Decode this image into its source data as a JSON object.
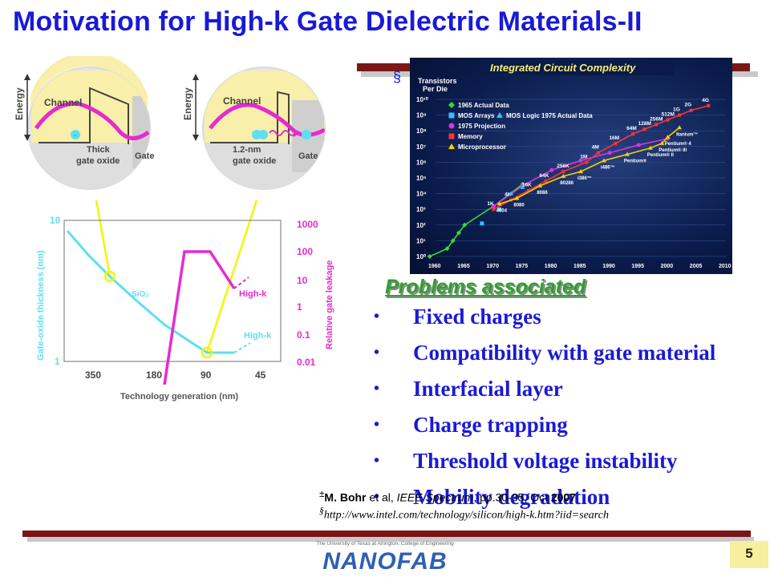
{
  "title": "Motivation for High-k Gate Dielectric Materials-II",
  "section_mark": "§",
  "figure_left": {
    "panel_thick": {
      "energy_label": "Energy",
      "channel_label": "Channel",
      "oxide_label_1": "Thick",
      "oxide_label_2": "gate oxide",
      "gate_label": "Gate"
    },
    "panel_thin": {
      "energy_label": "Energy",
      "channel_label": "Channel",
      "oxide_label_1": "1.2-nm",
      "oxide_label_2": "gate oxide",
      "gate_label": "Gate"
    },
    "graph": {
      "y_left_label": "Gate-oxide thickness (nm)",
      "y_right_label": "Relative gate leakage",
      "x_label": "Technology generation (nm)",
      "y_left_ticks": [
        "10",
        "1"
      ],
      "y_right_ticks": [
        "1000",
        "100",
        "10",
        "1",
        "0.1",
        "0.01"
      ],
      "x_ticks": [
        "350",
        "180",
        "90",
        "45"
      ],
      "sio2_label": "SiO₂",
      "highk_label_leakage": "High-k",
      "highk_label_thickness": "High-k"
    }
  },
  "chart_ic": {
    "title": "Integrated Circuit Complexity",
    "y_label_1": "Transistors",
    "y_label_2": "Per Die",
    "y_ticks": [
      "10¹⁰",
      "10⁹",
      "10⁸",
      "10⁷",
      "10⁶",
      "10⁵",
      "10⁴",
      "10³",
      "10²",
      "10¹",
      "10⁰"
    ],
    "x_ticks": [
      "1960",
      "1965",
      "1970",
      "1975",
      "1980",
      "1985",
      "1990",
      "1995",
      "2000",
      "2005",
      "2010"
    ],
    "legend": [
      {
        "label": "1965 Actual Data",
        "color": "#33dd33",
        "marker": "diamond"
      },
      {
        "label": "MOS Arrays",
        "color": "#33c0ff",
        "marker": "square"
      },
      {
        "label": "MOS Logic 1975 Actual Data",
        "color": "#33c0ff",
        "marker": "triangle"
      },
      {
        "label": "1975 Projection",
        "color": "#dd33dd",
        "marker": "circle"
      },
      {
        "label": "Memory",
        "color": "#ff3333",
        "marker": "square"
      },
      {
        "label": "Microprocessor",
        "color": "#ffcc00",
        "marker": "triangle"
      }
    ],
    "memory_labels": [
      "1K",
      "4K",
      "16K",
      "64K",
      "256K",
      "1M",
      "4M",
      "16M",
      "64M",
      "128M",
      "256M",
      "512M",
      "1G",
      "2G",
      "4G"
    ],
    "cpu_labels": [
      "4004",
      "8080",
      "8086",
      "80286",
      "i386™",
      "i486™",
      "Pentium®",
      "Pentium® II",
      "Pentium® III",
      "Pentium® 4",
      "Itanium™"
    ]
  },
  "problems": {
    "heading": "Problems associated",
    "items": [
      "Fixed charges",
      "Compatibility with gate material",
      "Interfacial layer",
      "Charge trapping",
      "Threshold voltage instability",
      "Mobility degradation"
    ]
  },
  "references": {
    "ref1_mark": "±",
    "ref1_author": "M. Bohr",
    "ref1_mid": " et al, ",
    "ref1_journal": "IEEE Spectrum",
    "ref1_rest": ", pp.30-35, Oct ",
    "ref1_year": "2007",
    "ref2_mark": "§",
    "ref2_url": "http://www.intel.com/technology/silicon/high-k.htm?iid=search"
  },
  "footer": {
    "logo_tagline": "The University of Texas at Arlington, College of Engineering",
    "logo_text": "NANOFAB",
    "page_number": "5"
  },
  "colors": {
    "title": "#1919d9",
    "bars": "#7a1616",
    "problems_heading": "#2ea12e",
    "problems_text": "#1a1ad6",
    "sio2_curve": "#55ecf5",
    "leakage_curve": "#ee22cc",
    "connector": "#f5f500",
    "page_box": "#f6ef9e"
  }
}
